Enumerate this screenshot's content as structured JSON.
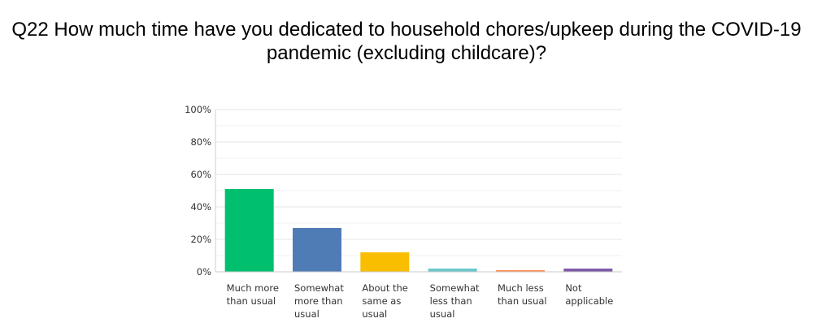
{
  "title_lines": [
    "Q22 How much time have you dedicated to household chores/upkeep during the COVID-19",
    "pandemic (excluding childcare)?"
  ],
  "chart_data": {
    "type": "bar",
    "categories": [
      [
        "Much more",
        "than usual"
      ],
      [
        "Somewhat",
        "more than",
        "usual"
      ],
      [
        "About the",
        "same as",
        "usual"
      ],
      [
        "Somewhat",
        "less than",
        "usual"
      ],
      [
        "Much less",
        "than usual"
      ],
      [
        "Not",
        "applicable"
      ]
    ],
    "values": [
      51,
      27,
      12,
      2,
      1,
      2
    ],
    "colors": [
      "#00bf6f",
      "#507cb6",
      "#f9be00",
      "#6bc8cd",
      "#ff8b4f",
      "#7d5ba6"
    ],
    "yticks": [
      "0%",
      "20%",
      "40%",
      "60%",
      "80%",
      "100%"
    ],
    "ylim": [
      0,
      100
    ],
    "grid": true
  }
}
